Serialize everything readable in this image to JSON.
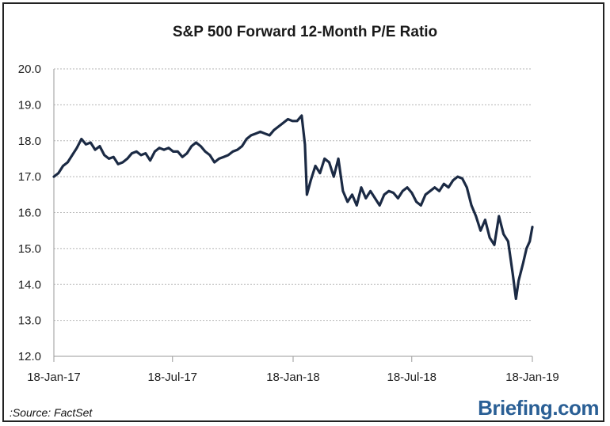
{
  "chart_data": {
    "type": "line",
    "title": "S&P 500 Forward 12-Month P/E Ratio",
    "xlabel": "",
    "ylabel": "",
    "x_ticks": [
      "18-Jan-17",
      "18-Jul-17",
      "18-Jan-18",
      "18-Jul-18",
      "18-Jan-19"
    ],
    "y_ticks": [
      "12.0",
      "13.0",
      "14.0",
      "15.0",
      "16.0",
      "17.0",
      "18.0",
      "19.0",
      "20.0"
    ],
    "xlim": [
      "2017-01-18",
      "2019-01-18"
    ],
    "ylim": [
      12.0,
      20.0
    ],
    "grid": "horizontal-dotted",
    "series": [
      {
        "color": "#1b2a44",
        "points": [
          [
            "2017-01-18",
            17.0
          ],
          [
            "2017-01-25",
            17.1
          ],
          [
            "2017-02-01",
            17.3
          ],
          [
            "2017-02-08",
            17.4
          ],
          [
            "2017-02-15",
            17.6
          ],
          [
            "2017-02-22",
            17.8
          ],
          [
            "2017-03-01",
            18.05
          ],
          [
            "2017-03-08",
            17.9
          ],
          [
            "2017-03-15",
            17.95
          ],
          [
            "2017-03-22",
            17.75
          ],
          [
            "2017-03-29",
            17.85
          ],
          [
            "2017-04-05",
            17.6
          ],
          [
            "2017-04-12",
            17.5
          ],
          [
            "2017-04-19",
            17.55
          ],
          [
            "2017-04-26",
            17.35
          ],
          [
            "2017-05-03",
            17.4
          ],
          [
            "2017-05-10",
            17.5
          ],
          [
            "2017-05-17",
            17.65
          ],
          [
            "2017-05-24",
            17.7
          ],
          [
            "2017-05-31",
            17.6
          ],
          [
            "2017-06-07",
            17.65
          ],
          [
            "2017-06-14",
            17.45
          ],
          [
            "2017-06-21",
            17.7
          ],
          [
            "2017-06-28",
            17.8
          ],
          [
            "2017-07-05",
            17.75
          ],
          [
            "2017-07-12",
            17.8
          ],
          [
            "2017-07-19",
            17.7
          ],
          [
            "2017-07-26",
            17.7
          ],
          [
            "2017-08-02",
            17.55
          ],
          [
            "2017-08-09",
            17.65
          ],
          [
            "2017-08-16",
            17.85
          ],
          [
            "2017-08-23",
            17.95
          ],
          [
            "2017-08-30",
            17.85
          ],
          [
            "2017-09-06",
            17.7
          ],
          [
            "2017-09-13",
            17.6
          ],
          [
            "2017-09-20",
            17.4
          ],
          [
            "2017-09-27",
            17.5
          ],
          [
            "2017-10-04",
            17.55
          ],
          [
            "2017-10-11",
            17.6
          ],
          [
            "2017-10-18",
            17.7
          ],
          [
            "2017-10-25",
            17.75
          ],
          [
            "2017-11-01",
            17.85
          ],
          [
            "2017-11-08",
            18.05
          ],
          [
            "2017-11-15",
            18.15
          ],
          [
            "2017-11-22",
            18.2
          ],
          [
            "2017-11-29",
            18.25
          ],
          [
            "2017-12-06",
            18.2
          ],
          [
            "2017-12-13",
            18.15
          ],
          [
            "2017-12-20",
            18.3
          ],
          [
            "2017-12-27",
            18.4
          ],
          [
            "2018-01-03",
            18.5
          ],
          [
            "2018-01-10",
            18.6
          ],
          [
            "2018-01-17",
            18.55
          ],
          [
            "2018-01-24",
            18.55
          ],
          [
            "2018-01-31",
            18.7
          ],
          [
            "2018-02-05",
            17.9
          ],
          [
            "2018-02-08",
            16.5
          ],
          [
            "2018-02-14",
            16.9
          ],
          [
            "2018-02-21",
            17.3
          ],
          [
            "2018-02-28",
            17.1
          ],
          [
            "2018-03-07",
            17.5
          ],
          [
            "2018-03-14",
            17.4
          ],
          [
            "2018-03-21",
            17.0
          ],
          [
            "2018-03-28",
            17.5
          ],
          [
            "2018-04-04",
            16.6
          ],
          [
            "2018-04-11",
            16.3
          ],
          [
            "2018-04-18",
            16.5
          ],
          [
            "2018-04-25",
            16.2
          ],
          [
            "2018-05-02",
            16.7
          ],
          [
            "2018-05-09",
            16.4
          ],
          [
            "2018-05-16",
            16.6
          ],
          [
            "2018-05-23",
            16.4
          ],
          [
            "2018-05-30",
            16.2
          ],
          [
            "2018-06-06",
            16.5
          ],
          [
            "2018-06-13",
            16.6
          ],
          [
            "2018-06-20",
            16.55
          ],
          [
            "2018-06-27",
            16.4
          ],
          [
            "2018-07-04",
            16.6
          ],
          [
            "2018-07-11",
            16.7
          ],
          [
            "2018-07-18",
            16.55
          ],
          [
            "2018-07-25",
            16.3
          ],
          [
            "2018-08-01",
            16.2
          ],
          [
            "2018-08-08",
            16.5
          ],
          [
            "2018-08-15",
            16.6
          ],
          [
            "2018-08-22",
            16.7
          ],
          [
            "2018-08-29",
            16.6
          ],
          [
            "2018-09-05",
            16.8
          ],
          [
            "2018-09-12",
            16.7
          ],
          [
            "2018-09-19",
            16.9
          ],
          [
            "2018-09-26",
            17.0
          ],
          [
            "2018-10-03",
            16.95
          ],
          [
            "2018-10-10",
            16.7
          ],
          [
            "2018-10-17",
            16.2
          ],
          [
            "2018-10-24",
            15.9
          ],
          [
            "2018-10-31",
            15.5
          ],
          [
            "2018-11-07",
            15.8
          ],
          [
            "2018-11-14",
            15.3
          ],
          [
            "2018-11-21",
            15.1
          ],
          [
            "2018-11-28",
            15.9
          ],
          [
            "2018-12-05",
            15.4
          ],
          [
            "2018-12-12",
            15.2
          ],
          [
            "2018-12-19",
            14.3
          ],
          [
            "2018-12-24",
            13.6
          ],
          [
            "2018-12-28",
            14.1
          ],
          [
            "2019-01-04",
            14.6
          ],
          [
            "2019-01-09",
            15.0
          ],
          [
            "2019-01-14",
            15.2
          ],
          [
            "2019-01-18",
            15.6
          ]
        ]
      }
    ]
  },
  "footer": {
    "source": ":Source: FactSet",
    "brand": "Briefing",
    "brand_suffix": ".com"
  }
}
